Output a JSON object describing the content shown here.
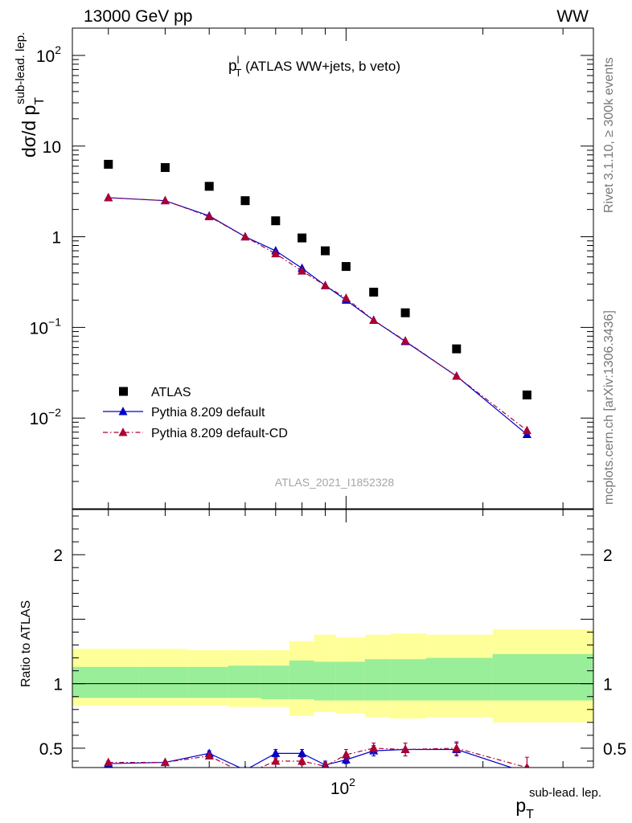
{
  "header": {
    "left": "13000 GeV pp",
    "right": "WW"
  },
  "side_labels": {
    "rivet": "Rivet 3.1.10, ≥ 300k events",
    "mcplots": "mcplots.cern.ch [arXiv:1306.3436]"
  },
  "main_plot": {
    "title_main": "p",
    "title_sup": "l",
    "title_sub": "T",
    "title_rest": " (ATLAS WW+jets, b veto)",
    "ylabel_main": "dσ/d p",
    "ylabel_sub": "T",
    "ylabel_sup": "sub-lead. lep.",
    "watermark": "ATLAS_2021_I1852328",
    "yticks": [
      {
        "value": 100,
        "base": "10",
        "exp": "2"
      },
      {
        "value": 10,
        "base": "10",
        "exp": ""
      },
      {
        "value": 1,
        "base": "1",
        "exp": ""
      },
      {
        "value": 0.1,
        "base": "10",
        "exp": "−1"
      },
      {
        "value": 0.01,
        "base": "10",
        "exp": "−2"
      }
    ]
  },
  "ratio_plot": {
    "ylabel": "Ratio to ATLAS",
    "yticks": [
      {
        "value": 2,
        "label": "2"
      },
      {
        "value": 1,
        "label": "1"
      },
      {
        "value": 0.5,
        "label": "0.5"
      }
    ]
  },
  "xaxis": {
    "label_main": "p",
    "label_sub": "T",
    "label_sup": "sub-lead. lep.",
    "ticks": [
      {
        "value": 100,
        "base": "10",
        "exp": "2"
      }
    ]
  },
  "legend": [
    {
      "label": "ATLAS",
      "marker": "square",
      "color": "#000000"
    },
    {
      "label": "Pythia 8.209 default",
      "marker": "triangle",
      "color": "#0000cc",
      "line": "solid"
    },
    {
      "label": "Pythia 8.209 default-CD",
      "marker": "triangle",
      "color": "#aa0033",
      "line": "dash-dot"
    }
  ],
  "chart_data": [
    {
      "type": "scatter",
      "title": "p_T^l (ATLAS WW+jets, b veto)",
      "xlabel": "p_T^sub-lead. lep.",
      "ylabel": "dσ/d p_T^sub-lead. lep.",
      "xscale": "log",
      "yscale": "log",
      "xlim": [
        25,
        350
      ],
      "ylim": [
        0.001,
        200
      ],
      "legend_position": "lower-left",
      "x": [
        30,
        40,
        50,
        60,
        70,
        80,
        90,
        100,
        115,
        135,
        175,
        250
      ],
      "series": [
        {
          "name": "ATLAS",
          "color": "#000000",
          "marker": "square",
          "values": [
            6.3,
            5.8,
            3.6,
            2.5,
            1.5,
            0.97,
            0.7,
            0.47,
            0.245,
            0.145,
            0.058,
            0.018
          ]
        },
        {
          "name": "Pythia 8.209 default",
          "color": "#0000cc",
          "marker": "triangle",
          "values": [
            2.7,
            2.5,
            1.7,
            1.0,
            0.7,
            0.45,
            0.29,
            0.2,
            0.12,
            0.07,
            0.029,
            0.0066
          ]
        },
        {
          "name": "Pythia 8.209 default-CD",
          "color": "#aa0033",
          "marker": "triangle",
          "values": [
            2.7,
            2.5,
            1.67,
            1.0,
            0.65,
            0.42,
            0.29,
            0.21,
            0.12,
            0.071,
            0.029,
            0.0073
          ]
        }
      ]
    },
    {
      "type": "line",
      "ylabel": "Ratio to ATLAS",
      "xscale": "log",
      "xlim": [
        25,
        350
      ],
      "ylim": [
        0.35,
        2.35
      ],
      "reference_line": 1,
      "bands": {
        "edges": [
          25,
          35,
          45,
          55,
          65,
          75,
          85,
          95,
          110,
          125,
          150,
          210,
          350
        ],
        "inner": {
          "color": "#99ee99",
          "low": [
            0.89,
            0.89,
            0.89,
            0.89,
            0.88,
            0.88,
            0.87,
            0.87,
            0.87,
            0.87,
            0.87,
            0.87
          ],
          "high": [
            1.13,
            1.13,
            1.13,
            1.14,
            1.14,
            1.18,
            1.17,
            1.17,
            1.19,
            1.19,
            1.2,
            1.23
          ]
        },
        "outer": {
          "color": "#ffff99",
          "low": [
            0.83,
            0.83,
            0.83,
            0.82,
            0.82,
            0.75,
            0.78,
            0.77,
            0.74,
            0.73,
            0.74,
            0.7
          ],
          "high": [
            1.27,
            1.27,
            1.26,
            1.26,
            1.26,
            1.33,
            1.38,
            1.36,
            1.38,
            1.39,
            1.38,
            1.42
          ]
        }
      },
      "x": [
        30,
        40,
        50,
        60,
        70,
        80,
        90,
        100,
        115,
        135,
        175,
        250
      ],
      "series": [
        {
          "name": "Pythia 8.209 default",
          "color": "#0000cc",
          "values": [
            0.38,
            0.39,
            0.46,
            0.33,
            0.46,
            0.46,
            0.37,
            0.41,
            0.48,
            0.49,
            0.49,
            0.31
          ],
          "errors": [
            0.01,
            0.01,
            0.02,
            0.02,
            0.03,
            0.03,
            0.03,
            0.03,
            0.04,
            0.05,
            0.05,
            0.05
          ]
        },
        {
          "name": "Pythia 8.209 default-CD",
          "color": "#aa0033",
          "values": [
            0.39,
            0.39,
            0.44,
            0.3,
            0.4,
            0.4,
            0.36,
            0.45,
            0.5,
            0.49,
            0.5,
            0.35
          ],
          "errors": [
            0.01,
            0.01,
            0.02,
            0.02,
            0.02,
            0.03,
            0.03,
            0.04,
            0.04,
            0.05,
            0.05,
            0.08
          ]
        }
      ]
    }
  ]
}
